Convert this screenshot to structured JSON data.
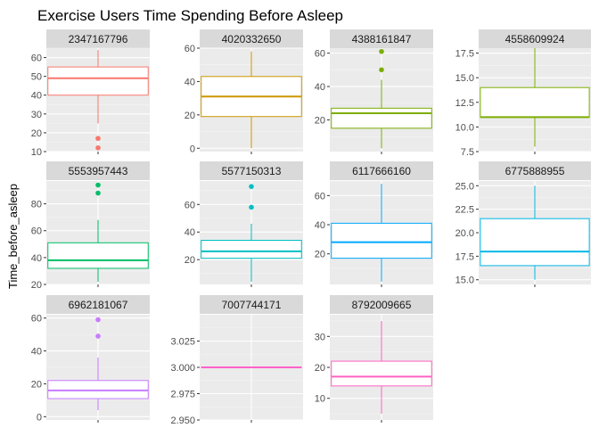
{
  "chart_data": {
    "type": "boxplot",
    "title": "Exercise Users Time Spending Before Asleep",
    "ylabel": "Time_before_asleep",
    "xlabel": "",
    "grid": true,
    "legend": "none",
    "facets": [
      {
        "id": "2347167796",
        "color": "#F8766D",
        "ylim": [
          10,
          65
        ],
        "ticks": [
          10,
          20,
          30,
          40,
          50,
          60
        ],
        "box": {
          "min": 25,
          "q1": 40,
          "median": 49,
          "q3": 55,
          "max": 64
        },
        "outliers": [
          17,
          12
        ]
      },
      {
        "id": "4020332650",
        "color": "#CD9600",
        "ylim": [
          -2,
          60
        ],
        "ticks": [
          0,
          20,
          40,
          60
        ],
        "box": {
          "min": 0,
          "q1": 19,
          "median": 31,
          "q3": 43,
          "max": 58
        },
        "outliers": []
      },
      {
        "id": "4388161847",
        "color": "#7CAE00",
        "ylim": [
          1,
          63
        ],
        "ticks": [
          20,
          40,
          60
        ],
        "box": {
          "min": 3,
          "q1": 15,
          "median": 24,
          "q3": 27,
          "max": 44
        },
        "outliers": [
          61,
          50
        ]
      },
      {
        "id": "4558609924",
        "color": "#7CAE00",
        "ylim": [
          7.5,
          18
        ],
        "ticks": [
          7.5,
          10.0,
          12.5,
          15.0,
          17.5
        ],
        "box": {
          "min": 8,
          "q1": 11,
          "median": 11,
          "q3": 14,
          "max": 18
        },
        "outliers": []
      },
      {
        "id": "5553957443",
        "color": "#00BE67",
        "ylim": [
          20,
          97
        ],
        "ticks": [
          20,
          40,
          60,
          80
        ],
        "box": {
          "min": 22,
          "q1": 32,
          "median": 38,
          "q3": 51,
          "max": 68
        },
        "outliers": [
          94,
          88
        ]
      },
      {
        "id": "5577150313",
        "color": "#00BFC4",
        "ylim": [
          2,
          77
        ],
        "ticks": [
          20,
          40,
          60
        ],
        "box": {
          "min": 4,
          "q1": 21,
          "median": 26,
          "q3": 34,
          "max": 46
        },
        "outliers": [
          73,
          58
        ]
      },
      {
        "id": "6117666160",
        "color": "#00A9FF",
        "ylim": [
          -1,
          70
        ],
        "ticks": [
          20,
          40,
          60
        ],
        "box": {
          "min": 1,
          "q1": 17,
          "median": 28,
          "q3": 41,
          "max": 68
        },
        "outliers": []
      },
      {
        "id": "6775888955",
        "color": "#00B8E7",
        "ylim": [
          14.5,
          25.5
        ],
        "ticks": [
          15.0,
          17.5,
          20.0,
          22.5,
          25.0
        ],
        "box": {
          "min": 15,
          "q1": 16.5,
          "median": 18,
          "q3": 21.5,
          "max": 25
        },
        "outliers": []
      },
      {
        "id": "6962181067",
        "color": "#C77CFF",
        "ylim": [
          -2,
          62
        ],
        "ticks": [
          0,
          20,
          40,
          60
        ],
        "box": {
          "min": 4,
          "q1": 11,
          "median": 16,
          "q3": 22,
          "max": 36
        },
        "outliers": [
          59,
          49
        ]
      },
      {
        "id": "7007744171",
        "color": "#FF61CC",
        "ylim": [
          2.95,
          3.05
        ],
        "ticks": [
          2.95,
          2.975,
          3.0,
          3.025
        ],
        "box": {
          "min": 3,
          "q1": 3,
          "median": 3,
          "q3": 3,
          "max": 3
        },
        "outliers": []
      },
      {
        "id": "8792009665",
        "color": "#FF61C3",
        "ylim": [
          3,
          37
        ],
        "ticks": [
          10,
          20,
          30
        ],
        "box": {
          "min": 5,
          "q1": 14,
          "median": 17,
          "q3": 22,
          "max": 35
        },
        "outliers": []
      }
    ]
  }
}
